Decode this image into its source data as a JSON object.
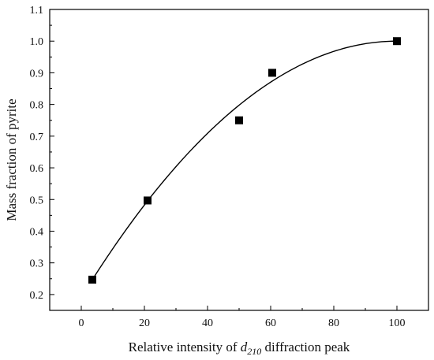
{
  "chart_data": {
    "type": "scatter",
    "title": "",
    "xlabel": {
      "prefix": "Relative intensity of ",
      "var": "d",
      "sub": "210",
      "suffix": " diffraction peak"
    },
    "ylabel": "Mass fraction of pyrite",
    "xlim": [
      -10,
      110
    ],
    "ylim": [
      0.15,
      1.1
    ],
    "xticks": [
      0,
      20,
      40,
      60,
      80,
      100
    ],
    "yticks": [
      0.2,
      0.3,
      0.4,
      0.5,
      0.6,
      0.7,
      0.8,
      0.9,
      1.0,
      1.1
    ],
    "xtick_labels": [
      "0",
      "20",
      "40",
      "60",
      "80",
      "100"
    ],
    "ytick_labels": [
      "0.2",
      "0.3",
      "0.4",
      "0.5",
      "0.6",
      "0.7",
      "0.8",
      "0.9",
      "1.0",
      "1.1"
    ],
    "grid": false,
    "legend": "none",
    "series": [
      {
        "kind": "scatter",
        "marker": "square",
        "color": "#000000",
        "x": [
          3.5,
          21,
          50,
          60.5,
          100
        ],
        "y": [
          0.247,
          0.497,
          0.75,
          0.9,
          1.0
        ]
      },
      {
        "kind": "fit-curve",
        "color": "#000000",
        "x_range": [
          3.5,
          100
        ],
        "y_start": 0.247,
        "y_end": 1.0,
        "vertex_x": 100
      }
    ]
  }
}
